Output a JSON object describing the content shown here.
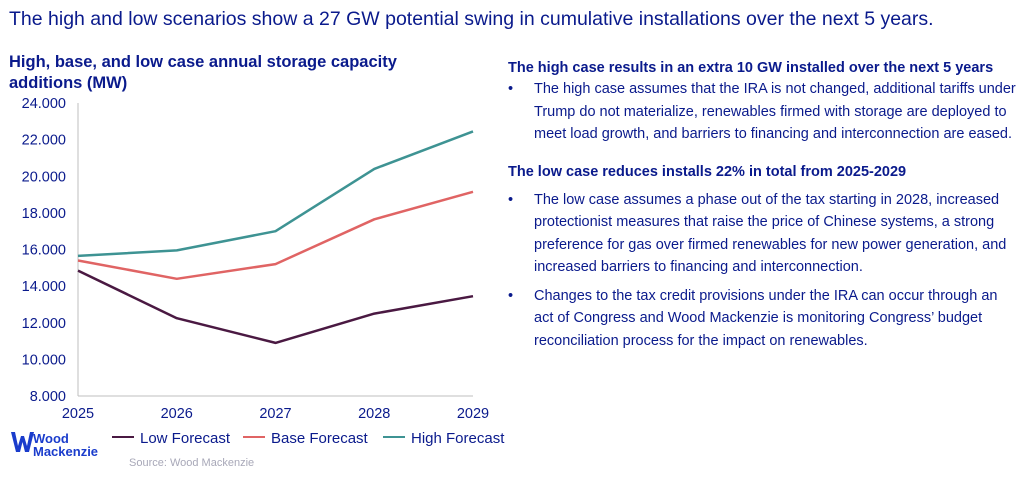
{
  "headline": "The high and low scenarios show a 27 GW potential swing in cumulative installations over the next 5 years.",
  "chart_title": "High, base, and low case annual storage capacity additions (MW)",
  "right": {
    "section1": {
      "heading": "The high case results in an extra 10 GW installed over the next 5 years",
      "bullets": [
        "The high case assumes that the IRA is not changed, additional tariffs under Trump do not materialize, renewables firmed with storage are deployed to meet load growth, and barriers to financing and interconnection are eased."
      ]
    },
    "section2": {
      "heading": "The low case reduces installs 22% in total from 2025-2029",
      "bullets": [
        "The low case assumes a phase out of the tax starting in 2028, increased protectionist measures that raise the price of Chinese systems, a strong preference for gas over firmed renewables for new power generation, and increased barriers to financing and interconnection.",
        "Changes to the tax credit provisions under the IRA can occur through an act of Congress and Wood Mackenzie is monitoring Congress’ budget reconciliation process for the impact on renewables."
      ]
    },
    "bullet_glyph": "•"
  },
  "logo": {
    "line1": "Wood",
    "line2": "Mackenzie"
  },
  "source": "Source: Wood Mackenzie",
  "colors": {
    "navy": "#0a1a8c",
    "low": "#4a1942",
    "base": "#e06464",
    "high": "#3e9393"
  },
  "chart_data": {
    "type": "line",
    "title": "High, base, and low case annual storage capacity additions (MW)",
    "x": [
      "2025",
      "2026",
      "2027",
      "2028",
      "2029"
    ],
    "ylim": [
      8000,
      24000
    ],
    "yticks": [
      8000,
      10000,
      12000,
      14000,
      16000,
      18000,
      20000,
      22000,
      24000
    ],
    "ytick_labels": [
      "8.000",
      "10.000",
      "12.000",
      "14.000",
      "16.000",
      "18.000",
      "20.000",
      "22.000",
      "24.000"
    ],
    "grid": false,
    "legend": "bottom",
    "series": [
      {
        "name": "Low Forecast",
        "color": "#4a1942",
        "values": [
          14850,
          12250,
          10900,
          12500,
          13450
        ]
      },
      {
        "name": "Base Forecast",
        "color": "#e06464",
        "values": [
          15400,
          14400,
          15200,
          17650,
          19150
        ]
      },
      {
        "name": "High Forecast",
        "color": "#3e9393",
        "values": [
          15650,
          15950,
          17000,
          20400,
          22450
        ]
      }
    ]
  }
}
